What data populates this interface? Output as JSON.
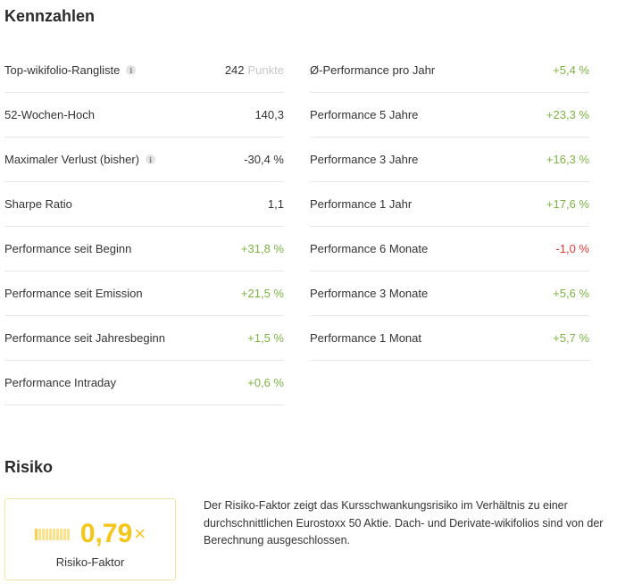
{
  "kennzahlen": {
    "title": "Kennzahlen",
    "left": [
      {
        "label": "Top-wikifolio-Rangliste",
        "info": true,
        "value": "242",
        "unit": "Punkte",
        "tone": "neutral"
      },
      {
        "label": "52-Wochen-Hoch",
        "info": false,
        "value": "140,3",
        "unit": "",
        "tone": "neutral"
      },
      {
        "label": "Maximaler Verlust (bisher)",
        "info": true,
        "value": "-30,4 %",
        "unit": "",
        "tone": "neutral"
      },
      {
        "label": "Sharpe Ratio",
        "info": false,
        "value": "1,1",
        "unit": "",
        "tone": "neutral"
      },
      {
        "label": "Performance seit Beginn",
        "info": false,
        "value": "+31,8 %",
        "unit": "",
        "tone": "pos"
      },
      {
        "label": "Performance seit Emission",
        "info": false,
        "value": "+21,5 %",
        "unit": "",
        "tone": "pos"
      },
      {
        "label": "Performance seit Jahresbeginn",
        "info": false,
        "value": "+1,5 %",
        "unit": "",
        "tone": "pos"
      },
      {
        "label": "Performance Intraday",
        "info": false,
        "value": "+0,6 %",
        "unit": "",
        "tone": "pos"
      }
    ],
    "right": [
      {
        "label": "Ø-Performance pro Jahr",
        "info": false,
        "value": "+5,4 %",
        "unit": "",
        "tone": "pos"
      },
      {
        "label": "Performance 5 Jahre",
        "info": false,
        "value": "+23,3 %",
        "unit": "",
        "tone": "pos"
      },
      {
        "label": "Performance 3 Jahre",
        "info": false,
        "value": "+16,3 %",
        "unit": "",
        "tone": "pos"
      },
      {
        "label": "Performance 1 Jahr",
        "info": false,
        "value": "+17,6 %",
        "unit": "",
        "tone": "pos"
      },
      {
        "label": "Performance 6 Monate",
        "info": false,
        "value": "-1,0 %",
        "unit": "",
        "tone": "neg"
      },
      {
        "label": "Performance 3 Monate",
        "info": false,
        "value": "+5,6 %",
        "unit": "",
        "tone": "pos"
      },
      {
        "label": "Performance 1 Monat",
        "info": false,
        "value": "+5,7 %",
        "unit": "",
        "tone": "pos"
      }
    ]
  },
  "risiko": {
    "title": "Risiko",
    "factor_value": "0,79",
    "factor_suffix": "×",
    "factor_label": "Risiko-Faktor",
    "bars_total": 10,
    "bars_active": 1,
    "description": "Der Risiko-Faktor zeigt das Kursschwankungsrisiko im Verhältnis zu einer durchschnittlichen Eurostoxx 50 Aktie. Dach- und Derivate-wikifolios sind von der Berechnung ausgeschlossen."
  },
  "colors": {
    "positive": "#7cb342",
    "negative": "#e53935",
    "risk_accent": "#f5c518"
  },
  "icons": {
    "info": "info-icon"
  }
}
